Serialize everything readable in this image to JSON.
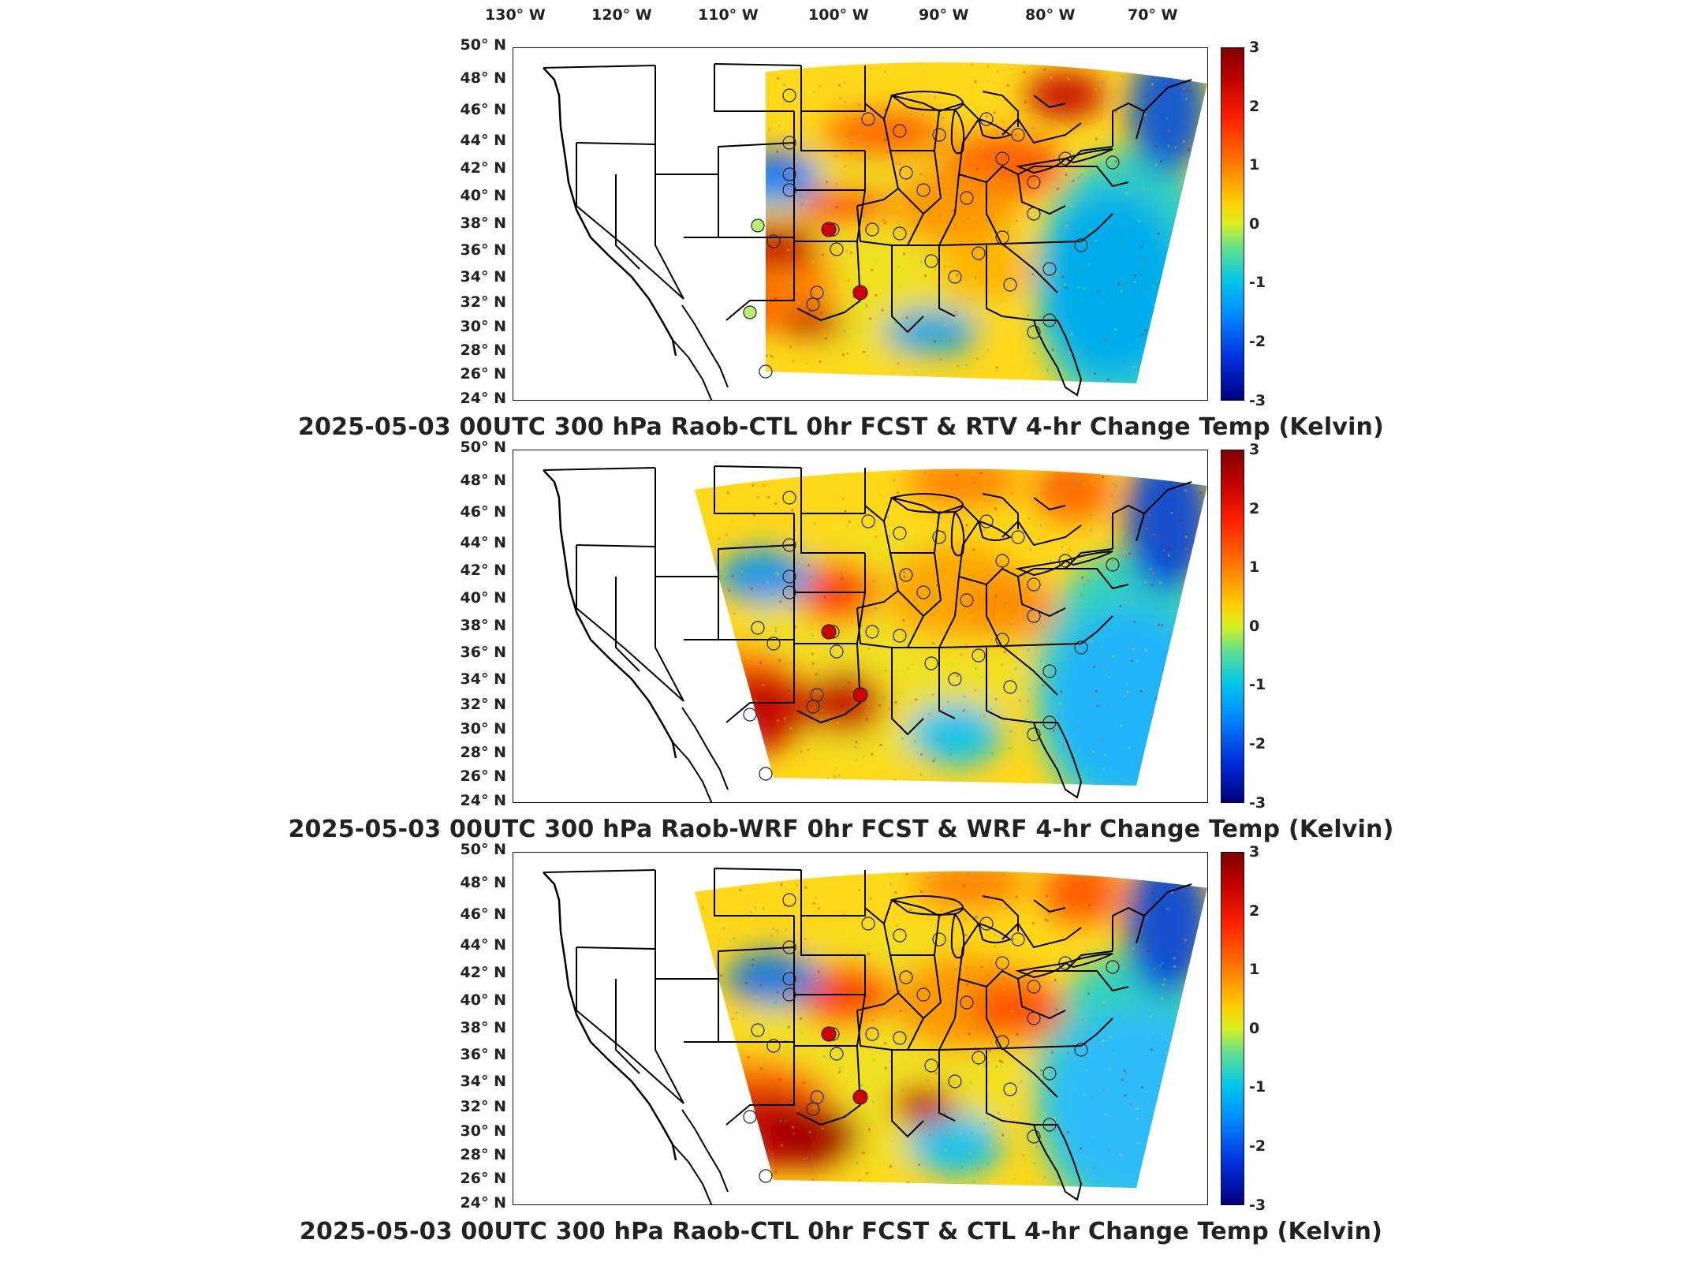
{
  "lon_labels": [
    "130° W",
    "120° W",
    "110° W",
    "100° W",
    "90° W",
    "80° W",
    "70° W"
  ],
  "lat_labels": [
    "50° N",
    "48° N",
    "46° N",
    "44° N",
    "42° N",
    "40° N",
    "38° N",
    "36° N",
    "34° N",
    "32° N",
    "30° N",
    "28° N",
    "26° N",
    "24° N"
  ],
  "colorbar": {
    "ticks": [
      "3",
      "2",
      "1",
      "0",
      "-1",
      "-2",
      "-3"
    ],
    "range": [
      -3,
      3
    ],
    "colors": [
      "#800000",
      "#ff2000",
      "#ff7a00",
      "#ffd000",
      "#60e090",
      "#00c8e8",
      "#0090ff",
      "#000080"
    ]
  },
  "panels": [
    {
      "title": "2025-05-03 00UTC 300 hPa Raob-CTL 0hr FCST & RTV 4-hr Change Temp (Kelvin)",
      "variant": "rtv"
    },
    {
      "title": "2025-05-03 00UTC 300 hPa Raob-WRF 0hr FCST & WRF 4-hr Change Temp (Kelvin)",
      "variant": "wrf"
    },
    {
      "title": "2025-05-03 00UTC 300 hPa Raob-CTL 0hr FCST & CTL 4-hr Change Temp (Kelvin)",
      "variant": "ctl"
    }
  ],
  "map": {
    "lon_range": [
      -132,
      -66
    ],
    "lat_range": [
      24,
      50
    ],
    "field": "300 hPa 4-hr temperature change (K)"
  }
}
